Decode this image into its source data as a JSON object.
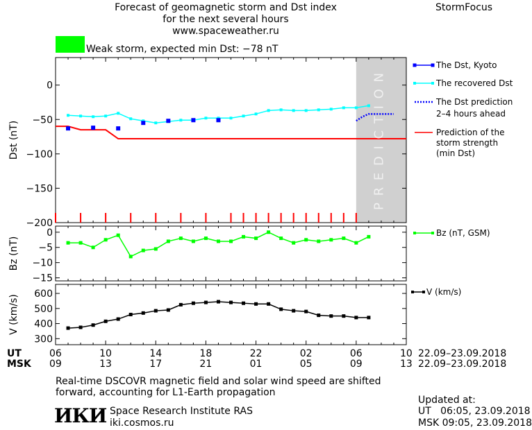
{
  "header": {
    "title_line1": "Forecast of geomagnetic storm and Dst index",
    "title_line2": "for the next several hours",
    "website": "www.spaceweather.ru",
    "app_name": "StormFocus",
    "status_text": "Weak storm, expected min Dst: −78 nT",
    "status_color": "#00ff00"
  },
  "legend": {
    "dst_kyoto": "The Dst, Kyoto",
    "dst_recovered": "The recovered Dst",
    "dst_prediction_1": "The Dst prediction",
    "dst_prediction_2": "2–4 hours ahead",
    "storm_1": "Prediction of the",
    "storm_2": "storm strength",
    "storm_3": "(min Dst)",
    "bz": "Bz (nT, GSM)",
    "v": "V (km/s)"
  },
  "prediction_label": "P R E D I C T I O N",
  "axes": {
    "ut_label": "UT",
    "msk_label": "MSK",
    "ut_ticks": [
      "06",
      "10",
      "14",
      "18",
      "22",
      "02",
      "06",
      "10"
    ],
    "msk_ticks": [
      "09",
      "13",
      "17",
      "21",
      "01",
      "05",
      "09",
      "13"
    ],
    "date_range_ut": "22.09–23.09.2018",
    "date_range_msk": "22.09–23.09.2018"
  },
  "footer": {
    "note_line1": "Real-time DSCOVR magnetic field and solar wind speed are shifted",
    "note_line2": "forward, accounting for L1-Earth propagation",
    "logo_text": "ИКИ",
    "institute": "Space Research Institute RAS",
    "institute_url": "iki.cosmos.ru",
    "updated_label": "Updated at:",
    "updated_ut": "UT   06:05, 23.09.2018",
    "updated_msk": "MSK 09:05, 23.09.2018"
  },
  "colors": {
    "dst_kyoto": "#0000ff",
    "dst_recovered": "#00ffff",
    "dst_prediction": "#0000ff",
    "storm_strength": "#ff0000",
    "bz": "#00ff00",
    "v": "#000000",
    "prediction_band": "#d0d0d0"
  },
  "chart_data": [
    {
      "type": "line",
      "panel": "dst",
      "ylabel": "Dst (nT)",
      "xlabel": "UT",
      "x_range_hours": [
        6,
        34
      ],
      "ylim": [
        -200,
        40
      ],
      "yticks": [
        0,
        -50,
        -100,
        -150,
        -200
      ],
      "prediction_start_hour": 30,
      "series": [
        {
          "name": "The Dst, Kyoto",
          "style": "squares",
          "x": [
            7,
            9,
            11,
            13,
            15,
            17,
            19
          ],
          "values": [
            -63,
            -62,
            -63,
            -55,
            -52,
            -51,
            -51
          ]
        },
        {
          "name": "The recovered Dst",
          "style": "line-markers",
          "x": [
            7,
            8,
            9,
            10,
            11,
            12,
            13,
            14,
            15,
            16,
            17,
            18,
            19,
            20,
            21,
            22,
            23,
            24,
            25,
            26,
            27,
            28,
            29,
            30,
            31
          ],
          "values": [
            -44,
            -45,
            -46,
            -45,
            -41,
            -49,
            -52,
            -55,
            -53,
            -51,
            -51,
            -48,
            -48,
            -48,
            -45,
            -42,
            -37,
            -36,
            -37,
            -37,
            -36,
            -35,
            -33,
            -33,
            -30
          ]
        },
        {
          "name": "The Dst prediction 2-4 hours ahead",
          "style": "dotted",
          "x": [
            30,
            30.5,
            31,
            32,
            33
          ],
          "values": [
            -52,
            -46,
            -42,
            -42,
            -42
          ]
        },
        {
          "name": "Prediction of the storm strength (min Dst)",
          "style": "line",
          "x": [
            6,
            7,
            8,
            9,
            10,
            11,
            12,
            34
          ],
          "values": [
            -60,
            -60,
            -65,
            -65,
            -65,
            -78,
            -78,
            -78
          ]
        }
      ],
      "storm_ticks_x": [
        6,
        8,
        10,
        12,
        14,
        16,
        18,
        20,
        21,
        22,
        23,
        24,
        25,
        26,
        27,
        28,
        29,
        30
      ]
    },
    {
      "type": "line",
      "panel": "bz",
      "name": "Bz (nT, GSM)",
      "ylabel": "Bz (nT)",
      "ylim": [
        -16,
        2
      ],
      "yticks": [
        0,
        -5,
        -10,
        -15
      ],
      "x": [
        7,
        8,
        9,
        10,
        11,
        12,
        13,
        14,
        15,
        16,
        17,
        18,
        19,
        20,
        21,
        22,
        23,
        24,
        25,
        26,
        27,
        28,
        29,
        30,
        31
      ],
      "values": [
        -3.5,
        -3.5,
        -5,
        -2.5,
        -1,
        -8,
        -6,
        -5.5,
        -3,
        -2,
        -3,
        -2,
        -3,
        -3,
        -1.5,
        -2,
        0,
        -2,
        -3.5,
        -2.5,
        -3,
        -2.5,
        -2,
        -3.5,
        -1.5
      ]
    },
    {
      "type": "line",
      "panel": "v",
      "name": "V (km/s)",
      "ylabel": "V (km/s)",
      "ylim": [
        260,
        660
      ],
      "yticks": [
        300,
        400,
        500,
        600
      ],
      "x": [
        7,
        8,
        9,
        10,
        11,
        12,
        13,
        14,
        15,
        16,
        17,
        18,
        19,
        20,
        21,
        22,
        23,
        24,
        25,
        26,
        27,
        28,
        29,
        30,
        31
      ],
      "values": [
        370,
        375,
        390,
        415,
        430,
        460,
        470,
        485,
        490,
        525,
        535,
        540,
        545,
        540,
        535,
        530,
        530,
        495,
        485,
        480,
        455,
        450,
        450,
        440,
        440
      ]
    }
  ]
}
